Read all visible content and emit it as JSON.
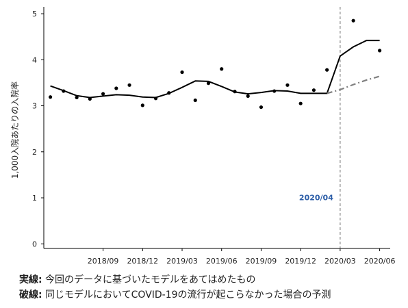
{
  "chart_data": {
    "type": "line",
    "ylabel": "1,000入院あたりの入院率",
    "xlabel": "",
    "ylim": [
      -0.1,
      5.15
    ],
    "yticks": [
      0,
      1,
      2,
      3,
      4,
      5
    ],
    "x_tick_labels": [
      "2018/09",
      "2018/12",
      "2019/03",
      "2019/06",
      "2019/09",
      "2019/12",
      "2020/03",
      "2020/06"
    ],
    "x_tick_months": [
      4,
      7,
      10,
      13,
      16,
      19,
      22,
      25
    ],
    "x_months": [
      0,
      1,
      2,
      3,
      4,
      5,
      6,
      7,
      8,
      9,
      10,
      11,
      12,
      13,
      14,
      15,
      16,
      17,
      18,
      19,
      20,
      21,
      22,
      23,
      24,
      25
    ],
    "observed": [
      3.19,
      3.32,
      3.18,
      3.15,
      3.26,
      3.38,
      3.45,
      3.01,
      3.16,
      3.28,
      3.73,
      3.12,
      3.49,
      3.8,
      3.31,
      3.21,
      2.97,
      3.32,
      3.45,
      3.05,
      3.34,
      3.78,
      4.85,
      4.2
    ],
    "observed_months": [
      0,
      1,
      2,
      3,
      4,
      5,
      6,
      7,
      8,
      9,
      10,
      11,
      12,
      13,
      14,
      15,
      16,
      17,
      18,
      19,
      20,
      21,
      23,
      25
    ],
    "series": [
      {
        "name": "実線",
        "style": "solid",
        "color": "#000000",
        "x": [
          0,
          1,
          2,
          3,
          4,
          5,
          6,
          7,
          8,
          9,
          10,
          11,
          12,
          13,
          14,
          15,
          16,
          17,
          18,
          19,
          20,
          21,
          22,
          23,
          24,
          25
        ],
        "values": [
          3.43,
          3.33,
          3.22,
          3.18,
          3.21,
          3.24,
          3.23,
          3.19,
          3.18,
          3.27,
          3.4,
          3.54,
          3.53,
          3.42,
          3.3,
          3.26,
          3.29,
          3.33,
          3.32,
          3.27,
          3.27,
          3.27,
          4.08,
          4.28,
          4.42,
          4.42
        ]
      },
      {
        "name": "破線",
        "style": "dashdot",
        "color": "#808080",
        "x": [
          21,
          22,
          23,
          24,
          25
        ],
        "values": [
          3.27,
          3.35,
          3.46,
          3.56,
          3.64
        ]
      }
    ],
    "vline": {
      "month": 22,
      "label": "2020/04",
      "color": "#888888"
    },
    "grid": false
  },
  "notes": {
    "line1_key": "実線:",
    "line1_text": " 今回のデータに基づいたモデルをあてはめたもの",
    "line2_key": "破線:",
    "line2_text": " 同じモデルにおいてCOVID-19の流行が起こらなかった場合の予測"
  }
}
